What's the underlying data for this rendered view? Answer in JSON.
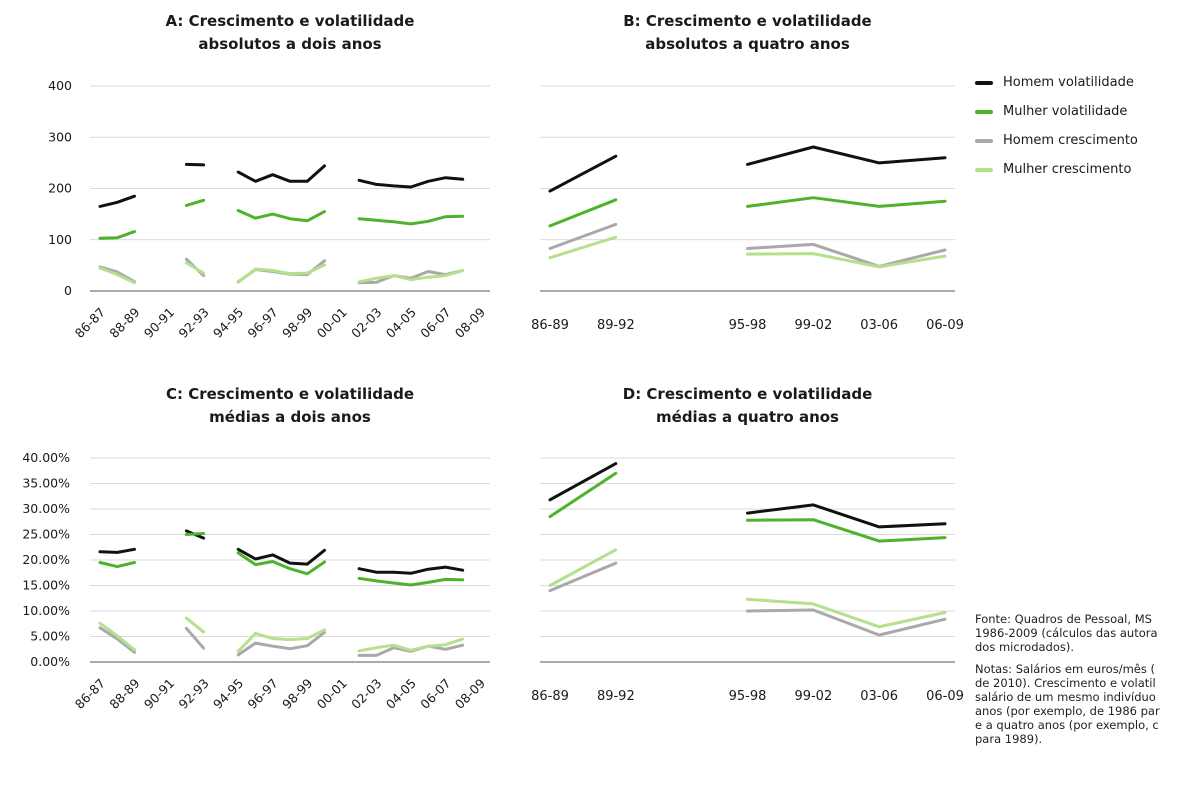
{
  "chart_data": [
    {
      "id": "A",
      "type": "line",
      "title_lines": [
        "A: Crescimento e volatilidade",
        "absolutos a dois anos"
      ],
      "categories": [
        "86-87",
        "87-88",
        "88-89",
        "89-90",
        "90-91",
        "91-92",
        "92-93",
        "93-94",
        "94-95",
        "95-96",
        "96-97",
        "97-98",
        "98-99",
        "99-00",
        "00-01",
        "01-02",
        "02-03",
        "03-04",
        "04-05",
        "05-06",
        "06-07",
        "07-08",
        "08-09"
      ],
      "tick_labels": [
        "86-87",
        "",
        "88-89",
        "",
        "90-91",
        "",
        "92-93",
        "",
        "94-95",
        "",
        "96-97",
        "",
        "98-99",
        "",
        "00-01",
        "",
        "02-03",
        "",
        "04-05",
        "",
        "06-07",
        "",
        "08-09"
      ],
      "y_ticks": [
        "0",
        "100",
        "200",
        "300",
        "400"
      ],
      "ylim": [
        0,
        400
      ],
      "series": [
        {
          "name": "Homem volatilidade",
          "color": "#111111",
          "values": [
            165,
            173,
            185,
            null,
            null,
            247,
            246,
            null,
            232,
            214,
            227,
            214,
            214,
            244,
            null,
            216,
            208,
            205,
            203,
            214,
            221,
            218,
            null
          ]
        },
        {
          "name": "Mulher volatilidade",
          "color": "#4cb32b",
          "values": [
            103,
            104,
            116,
            null,
            null,
            167,
            177,
            null,
            157,
            142,
            150,
            141,
            137,
            155,
            null,
            141,
            138,
            135,
            131,
            136,
            145,
            146,
            null
          ]
        },
        {
          "name": "Homem crescimento",
          "color": "#a9a9a9",
          "values": [
            47,
            37,
            18,
            null,
            null,
            62,
            30,
            null,
            18,
            42,
            38,
            33,
            32,
            59,
            null,
            16,
            17,
            30,
            25,
            38,
            32,
            40,
            null
          ]
        },
        {
          "name": "Mulher crescimento",
          "color": "#b5e08c",
          "values": [
            45,
            32,
            16,
            null,
            null,
            55,
            35,
            null,
            17,
            43,
            40,
            34,
            35,
            51,
            null,
            18,
            25,
            30,
            22,
            27,
            30,
            40,
            null
          ]
        }
      ]
    },
    {
      "id": "B",
      "type": "line",
      "title_lines": [
        "B: Crescimento e volatilidade",
        "absolutos a quatro anos"
      ],
      "categories": [
        "86-89",
        "89-92",
        "",
        "95-98",
        "99-02",
        "03-06",
        "06-09"
      ],
      "tick_labels": [
        "86-89",
        "89-92",
        "",
        "95-98",
        "99-02",
        "03-06",
        "06-09"
      ],
      "y_ticks": [],
      "ylim": [
        0,
        400
      ],
      "series": [
        {
          "name": "Homem volatilidade",
          "color": "#111111",
          "values": [
            195,
            263,
            null,
            247,
            281,
            250,
            260
          ]
        },
        {
          "name": "Mulher volatilidade",
          "color": "#4cb32b",
          "values": [
            127,
            178,
            null,
            165,
            182,
            165,
            175
          ]
        },
        {
          "name": "Homem crescimento",
          "color": "#a9a9a9",
          "values": [
            83,
            130,
            null,
            83,
            91,
            48,
            80
          ]
        },
        {
          "name": "Mulher crescimento",
          "color": "#b5e08c",
          "values": [
            65,
            105,
            null,
            72,
            73,
            47,
            68
          ]
        }
      ]
    },
    {
      "id": "C",
      "type": "line",
      "title_lines": [
        "C: Crescimento e volatilidade",
        "médias a dois anos"
      ],
      "categories": [
        "86-87",
        "87-88",
        "88-89",
        "89-90",
        "90-91",
        "91-92",
        "92-93",
        "93-94",
        "94-95",
        "95-96",
        "96-97",
        "97-98",
        "98-99",
        "99-00",
        "00-01",
        "01-02",
        "02-03",
        "03-04",
        "04-05",
        "05-06",
        "06-07",
        "07-08",
        "08-09"
      ],
      "tick_labels": [
        "86-87",
        "",
        "88-89",
        "",
        "90-91",
        "",
        "92-93",
        "",
        "94-95",
        "",
        "96-97",
        "",
        "98-99",
        "",
        "00-01",
        "",
        "02-03",
        "",
        "04-05",
        "",
        "06-07",
        "",
        "08-09"
      ],
      "y_ticks": [
        "0.00%",
        "5.00%",
        "10.00%",
        "15.00%",
        "20.00%",
        "25.00%",
        "30.00%",
        "35.00%",
        "40.00%"
      ],
      "ylim": [
        0,
        40
      ],
      "series": [
        {
          "name": "Homem volatilidade",
          "color": "#111111",
          "values": [
            21.6,
            21.5,
            22.1,
            null,
            null,
            25.7,
            24.3,
            null,
            22.1,
            20.2,
            21.0,
            19.4,
            19.2,
            21.9,
            null,
            18.3,
            17.6,
            17.6,
            17.4,
            18.2,
            18.6,
            18.0,
            null
          ]
        },
        {
          "name": "Mulher volatilidade",
          "color": "#4cb32b",
          "values": [
            19.5,
            18.7,
            19.5,
            null,
            null,
            25.0,
            25.2,
            null,
            21.4,
            19.1,
            19.7,
            18.3,
            17.3,
            19.6,
            null,
            16.4,
            15.9,
            15.5,
            15.1,
            15.6,
            16.2,
            16.1,
            null
          ]
        },
        {
          "name": "Homem crescimento",
          "color": "#a9a9a9",
          "values": [
            6.7,
            4.5,
            1.9,
            null,
            null,
            6.6,
            2.7,
            null,
            1.4,
            3.7,
            3.1,
            2.6,
            3.2,
            5.8,
            null,
            1.3,
            1.3,
            2.8,
            2.1,
            3.1,
            2.5,
            3.3,
            null
          ]
        },
        {
          "name": "Mulher crescimento",
          "color": "#b5e08c",
          "values": [
            7.6,
            5.1,
            2.4,
            null,
            null,
            8.6,
            5.9,
            null,
            2.1,
            5.6,
            4.6,
            4.4,
            4.6,
            6.3,
            null,
            2.2,
            2.8,
            3.3,
            2.3,
            3.1,
            3.4,
            4.5,
            null
          ]
        }
      ]
    },
    {
      "id": "D",
      "type": "line",
      "title_lines": [
        "D: Crescimento e volatilidade",
        "médias a quatro anos"
      ],
      "categories": [
        "86-89",
        "89-92",
        "",
        "95-98",
        "99-02",
        "03-06",
        "06-09"
      ],
      "tick_labels": [
        "86-89",
        "89-92",
        "",
        "95-98",
        "99-02",
        "03-06",
        "06-09"
      ],
      "y_ticks": [],
      "ylim": [
        0,
        40
      ],
      "series": [
        {
          "name": "Homem volatilidade",
          "color": "#111111",
          "values": [
            31.8,
            38.9,
            null,
            29.2,
            30.8,
            26.5,
            27.1
          ]
        },
        {
          "name": "Mulher volatilidade",
          "color": "#4cb32b",
          "values": [
            28.5,
            37.0,
            null,
            27.8,
            27.9,
            23.7,
            24.4
          ]
        },
        {
          "name": "Homem crescimento",
          "color": "#a9a9a9",
          "values": [
            14.0,
            19.4,
            null,
            10.0,
            10.2,
            5.3,
            8.4
          ]
        },
        {
          "name": "Mulher crescimento",
          "color": "#b5e08c",
          "values": [
            15.0,
            22.0,
            null,
            12.3,
            11.4,
            6.9,
            9.7
          ]
        }
      ]
    }
  ],
  "legend": {
    "items": [
      {
        "label": "Homem volatilidade",
        "color": "#111111"
      },
      {
        "label": "Mulher volatilidade",
        "color": "#4cb32b"
      },
      {
        "label": "Homem crescimento",
        "color": "#a9a9a9"
      },
      {
        "label": "Mulher crescimento",
        "color": "#b5e08c"
      }
    ]
  },
  "notes": {
    "source_lines": [
      "Fonte: Quadros de Pessoal, MS",
      "1986-2009 (cálculos das autora",
      "dos microdados)."
    ],
    "notes_lines": [
      "Notas: Salários em euros/mês (",
      "de 2010). Crescimento e volatil",
      "salário de um mesmo indivíduo",
      "anos (por exemplo, de 1986 par",
      "e a quatro anos (por exemplo, c",
      "para 1989)."
    ]
  }
}
